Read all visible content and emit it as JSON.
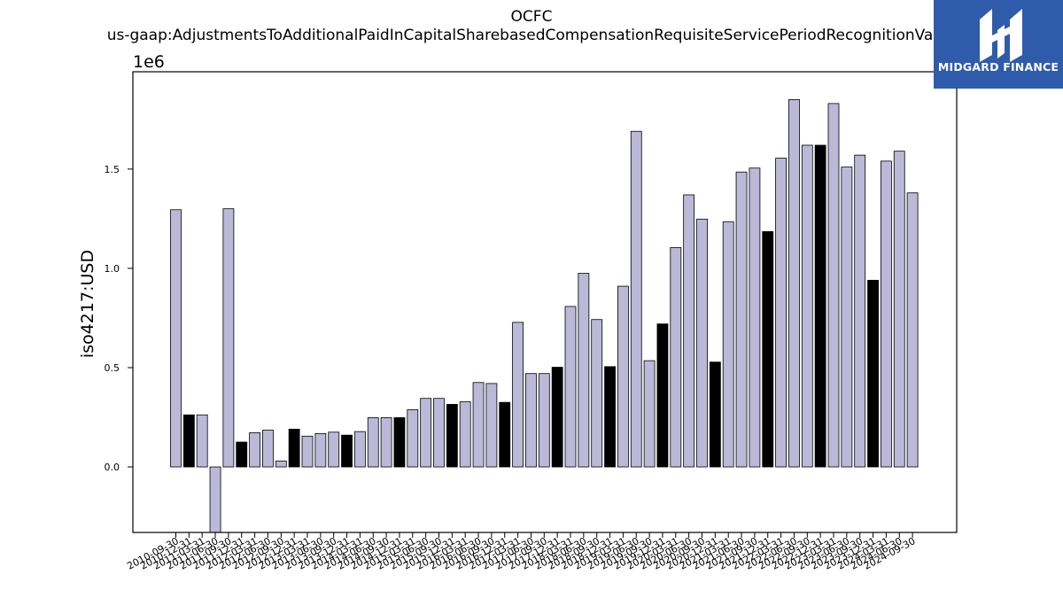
{
  "chart_data": {
    "type": "bar",
    "title": "OCFC",
    "subtitle": "us-gaap:AdjustmentsToAdditionalPaidInCapitalSharebasedCompensationRequisiteServicePeriodRecognitionValue",
    "ylabel": "iso4217:USD",
    "xlabel": "",
    "y_scale_label": "1e6",
    "ylim": [
      -330000,
      1990000
    ],
    "yticks": [
      0.0,
      0.5,
      1.0,
      1.5
    ],
    "grid": false,
    "colors": {
      "bar": "#bcb8d8",
      "highlight_bar": "#000000",
      "edge": "#000000"
    },
    "categories": [
      "2010-09-30",
      "2010-12-31",
      "2011-03-31",
      "2011-06-30",
      "2011-09-30",
      "2011-12-31",
      "2012-03-31",
      "2012-06-30",
      "2012-09-30",
      "2012-12-31",
      "2013-03-31",
      "2013-06-30",
      "2013-09-30",
      "2013-12-31",
      "2014-03-31",
      "2014-06-30",
      "2014-09-30",
      "2014-12-31",
      "2015-03-31",
      "2015-06-30",
      "2015-09-30",
      "2015-12-31",
      "2016-03-31",
      "2016-06-30",
      "2016-09-30",
      "2016-12-31",
      "2017-03-31",
      "2017-06-30",
      "2017-09-30",
      "2017-12-31",
      "2018-03-31",
      "2018-06-30",
      "2018-09-30",
      "2018-12-31",
      "2019-03-31",
      "2019-06-30",
      "2019-09-30",
      "2019-12-31",
      "2020-03-31",
      "2020-06-30",
      "2020-09-30",
      "2020-12-31",
      "2021-03-31",
      "2021-06-30",
      "2021-09-30",
      "2021-12-31",
      "2022-03-31",
      "2022-06-30",
      "2022-09-30",
      "2022-12-31",
      "2023-03-31",
      "2023-06-30",
      "2023-09-30",
      "2023-12-31",
      "2024-03-31",
      "2024-06-30",
      "2024-09-30"
    ],
    "values": [
      1295000,
      262000,
      262000,
      -340000,
      1300000,
      125000,
      172000,
      185000,
      30000,
      190000,
      155000,
      168000,
      175000,
      160000,
      178000,
      248000,
      248000,
      248000,
      288000,
      345000,
      345000,
      315000,
      328000,
      425000,
      420000,
      325000,
      728000,
      470000,
      470000,
      502000,
      808000,
      975000,
      742000,
      505000,
      910000,
      1690000,
      535000,
      720000,
      1105000,
      1370000,
      1248000,
      528000,
      1235000,
      1485000,
      1505000,
      1185000,
      1555000,
      1850000,
      1620000,
      1620000,
      1830000,
      1510000,
      1570000,
      940000,
      1540000,
      1590000,
      1380000
    ],
    "highlight": [
      false,
      true,
      false,
      false,
      false,
      true,
      false,
      false,
      false,
      true,
      false,
      false,
      false,
      true,
      false,
      false,
      false,
      true,
      false,
      false,
      false,
      true,
      false,
      false,
      false,
      true,
      false,
      false,
      false,
      true,
      false,
      false,
      false,
      true,
      false,
      false,
      false,
      true,
      false,
      false,
      false,
      true,
      false,
      false,
      false,
      true,
      false,
      false,
      false,
      true,
      false,
      false,
      false,
      true,
      false,
      false,
      false
    ]
  },
  "logo": {
    "text": "MIDGARD FINANCE",
    "color": "#2f5bab"
  }
}
